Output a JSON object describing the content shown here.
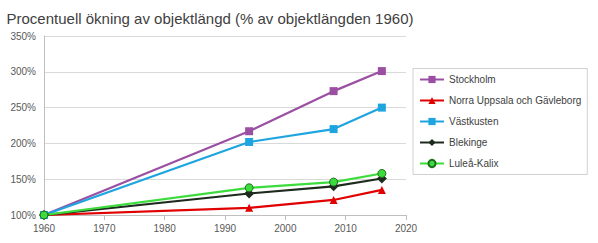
{
  "chart_data": {
    "type": "line",
    "title": "Procentuell ökning av objektlängd (% av objektlängden 1960)",
    "x": [
      1960,
      1994,
      2008,
      2016
    ],
    "series": [
      {
        "name": "Stockholm",
        "color": "#9b4fa3",
        "marker": "square",
        "values": [
          100,
          217,
          273,
          301
        ]
      },
      {
        "name": "Norra Uppsala och Gävleborg",
        "color": "#e00000",
        "marker": "triangle",
        "values": [
          100,
          110,
          121,
          135
        ]
      },
      {
        "name": "Västkusten",
        "color": "#1ea5e0",
        "marker": "square",
        "values": [
          100,
          202,
          220,
          250
        ]
      },
      {
        "name": "Blekinge",
        "color": "#1f2a1f",
        "marker": "diamond",
        "values": [
          100,
          130,
          140,
          151
        ]
      },
      {
        "name": "Luleå-Kalix",
        "color": "#3ddc3d",
        "marker": "circle",
        "values": [
          100,
          138,
          146,
          158
        ]
      }
    ],
    "xlim": [
      1960,
      2020
    ],
    "xticks": [
      1960,
      1970,
      1980,
      1990,
      2000,
      2010,
      2020
    ],
    "ylim": [
      100,
      350
    ],
    "yticks": [
      {
        "value": 100,
        "label": "100%"
      },
      {
        "value": 150,
        "label": "150%"
      },
      {
        "value": 200,
        "label": "200%"
      },
      {
        "value": 250,
        "label": "250%"
      },
      {
        "value": 300,
        "label": "300%"
      },
      {
        "value": 350,
        "label": "350%"
      }
    ],
    "grid": true,
    "legend": "right"
  }
}
